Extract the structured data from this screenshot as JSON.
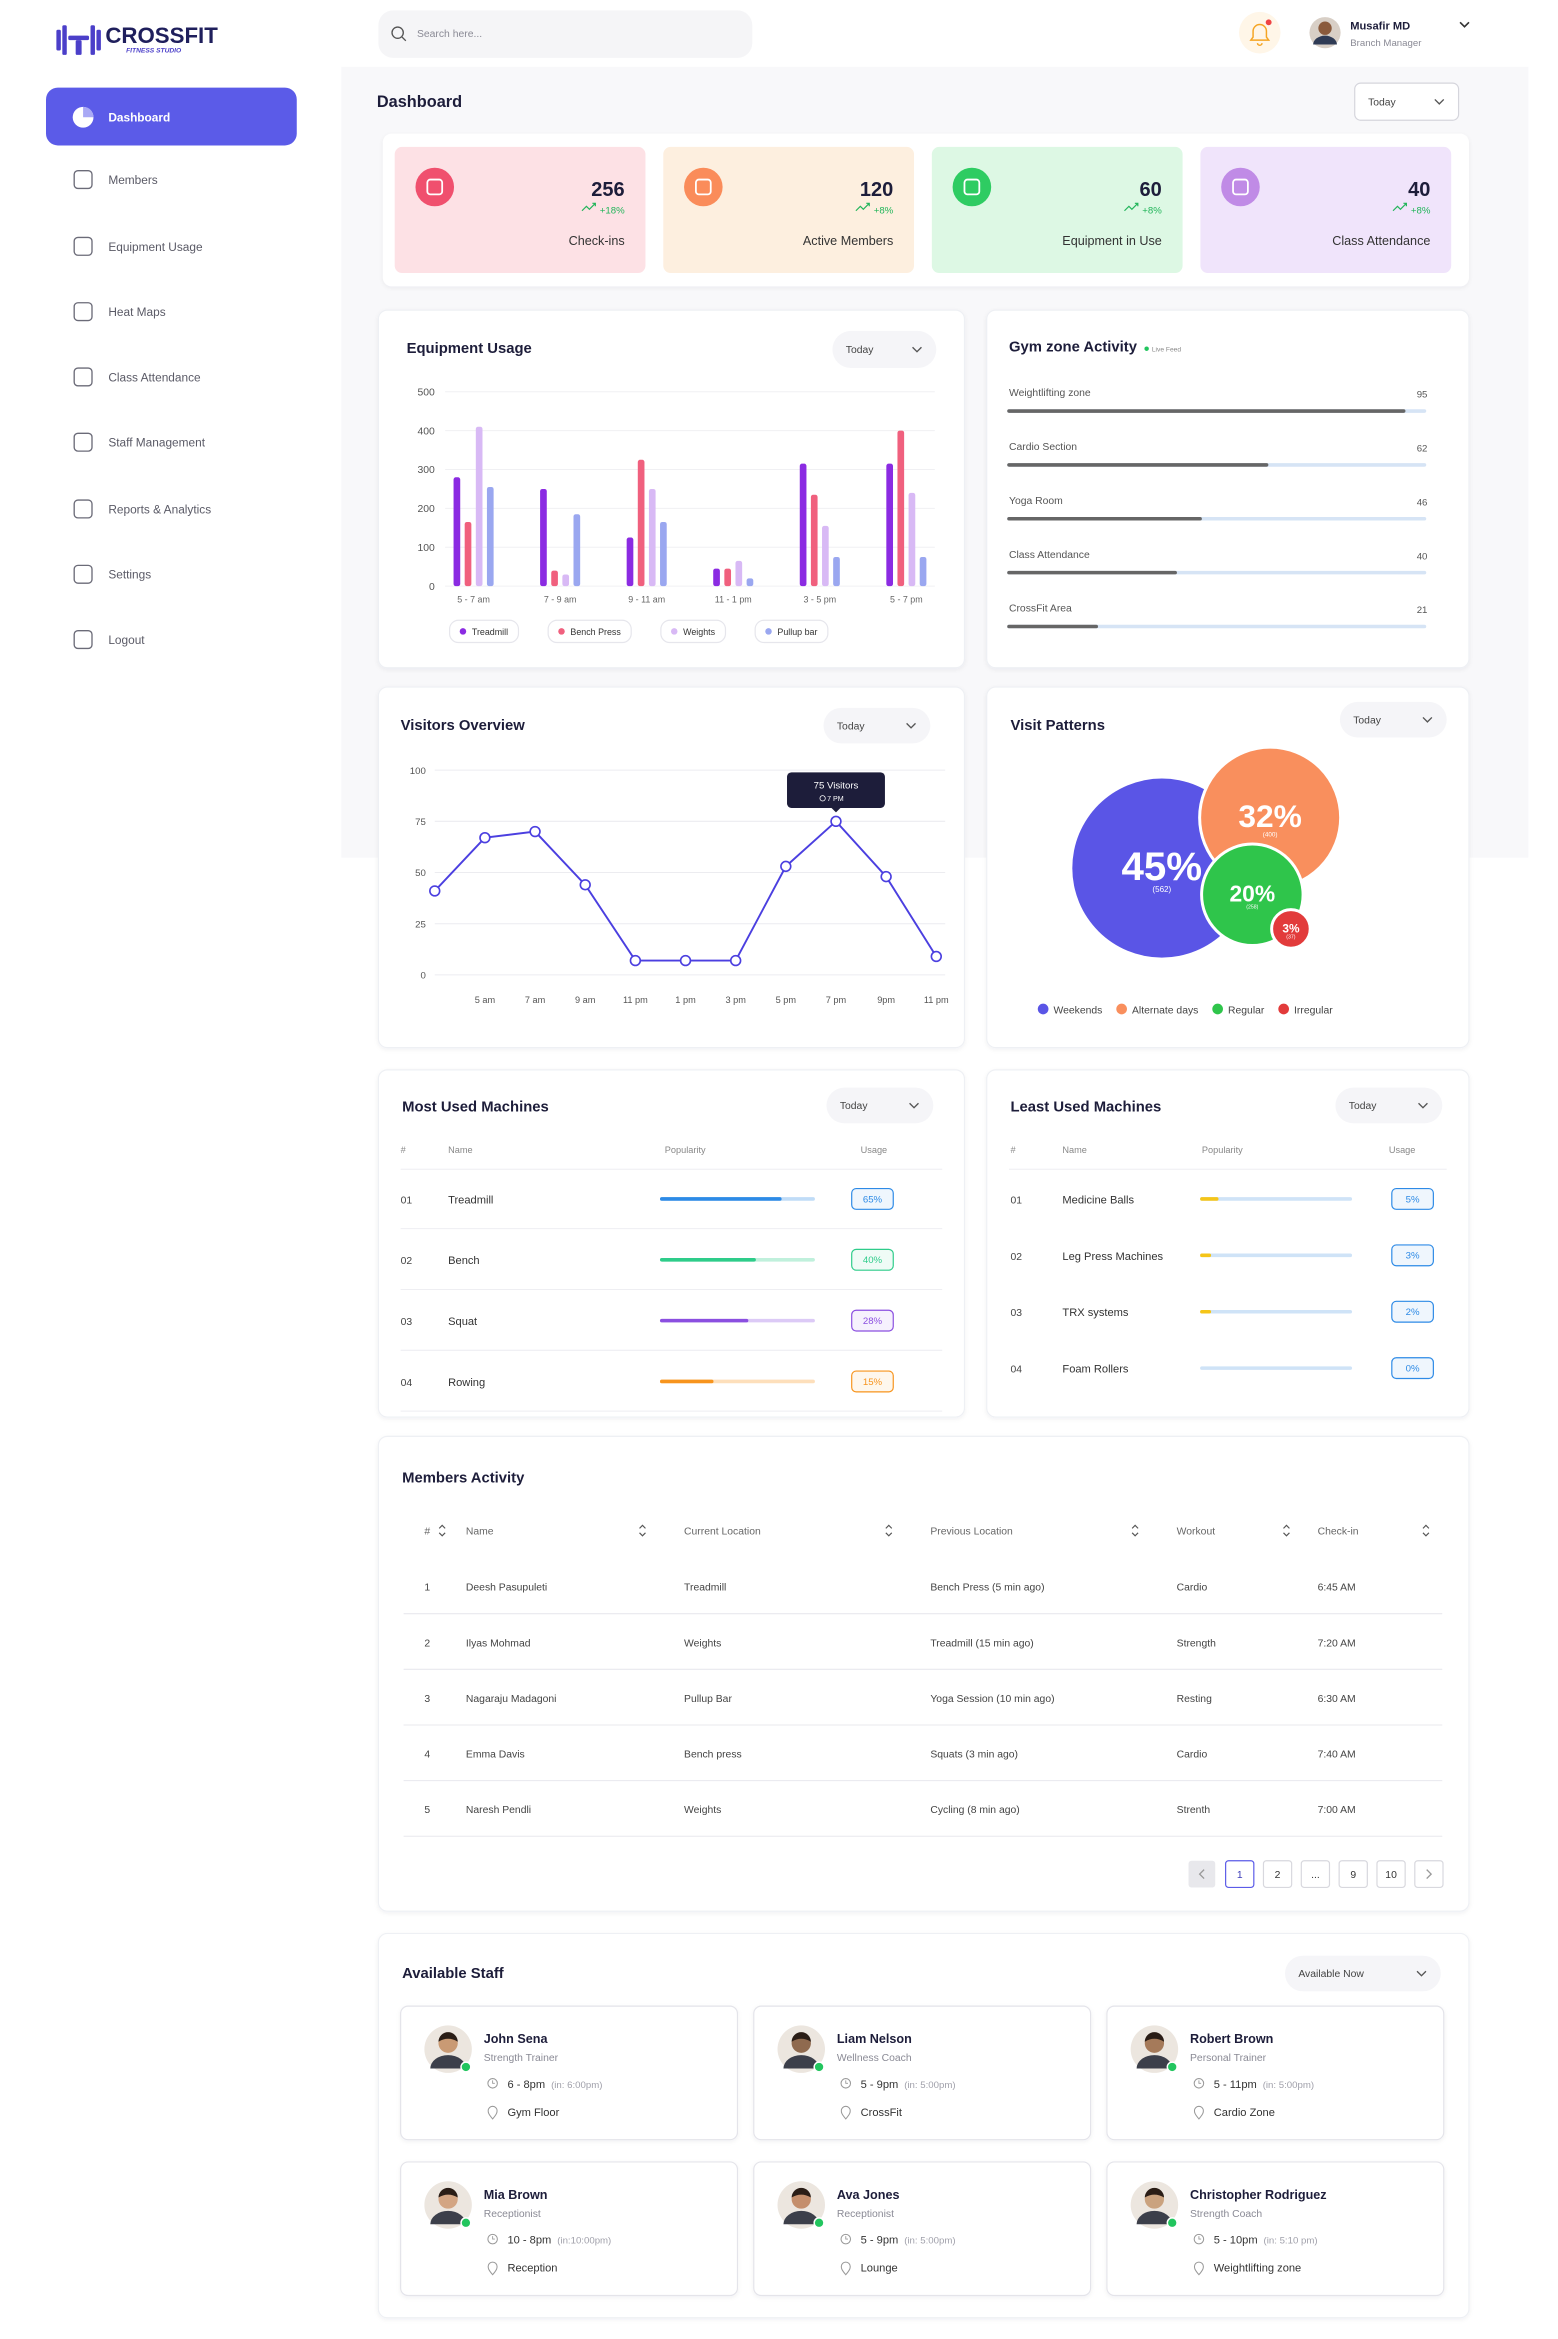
{
  "sidebar": {
    "brand": "CROSSFIT",
    "brand_sub": "FITNESS STUDIO",
    "nav": [
      "Dashboard",
      "Members",
      "Equipment Usage",
      "Heat Maps",
      "Class Attendance",
      "Staff Management",
      "Reports & Analytics",
      "Settings",
      "Logout"
    ]
  },
  "header": {
    "search_placeholder": "Search here...",
    "user_name": "Musafir MD",
    "user_role": "Branch Manager"
  },
  "page_title": "Dashboard",
  "period": "Today",
  "kpis": [
    {
      "value": 256,
      "change": "+18%",
      "label": "Check-ins",
      "color": "#f0506e",
      "bg": "#fde1e5"
    },
    {
      "value": 120,
      "change": "+8%",
      "label": "Active Members",
      "color": "#fa8c5a",
      "bg": "#fdefdf"
    },
    {
      "value": 60,
      "change": "+8%",
      "label": "Equipment in Use",
      "color": "#2ecc62",
      "bg": "#ddf8e4"
    },
    {
      "value": 40,
      "change": "+8%",
      "label": "Class Attendance",
      "color": "#c08be6",
      "bg": "#f0e4fb"
    }
  ],
  "equipment_usage": {
    "type": "bar",
    "title": "Equipment Usage",
    "filter": "Today",
    "categories": [
      "5 - 7 am",
      "7 - 9 am",
      "9 - 11 am",
      "11 - 1 pm",
      "3 - 5 pm",
      "5 - 7 pm"
    ],
    "series": [
      {
        "name": "Treadmill",
        "color": "#8b2be2",
        "values": [
          280,
          250,
          125,
          45,
          315,
          315
        ]
      },
      {
        "name": "Bench Press",
        "color": "#f0607e",
        "values": [
          165,
          40,
          325,
          45,
          235,
          400
        ]
      },
      {
        "name": "Weights",
        "color": "#d8b9f5",
        "values": [
          410,
          30,
          250,
          65,
          155,
          240
        ]
      },
      {
        "name": "Pullup bar",
        "color": "#9aa7f0",
        "values": [
          255,
          185,
          165,
          20,
          75,
          75
        ]
      }
    ],
    "ylim": [
      0,
      500
    ],
    "yticks": [
      0,
      100,
      200,
      300,
      400,
      500
    ],
    "grid": true
  },
  "gym_zone": {
    "title": "Gym zone Activity",
    "tag": "Live Feed",
    "xlim": [
      0,
      100
    ],
    "zones": [
      {
        "name": "Weightlifting zone",
        "value": 95
      },
      {
        "name": "Cardio Section",
        "value": 62
      },
      {
        "name": "Yoga Room",
        "value": 46
      },
      {
        "name": "Class Attendance",
        "value": 40
      },
      {
        "name": "CrossFit Area",
        "value": 21
      }
    ]
  },
  "visitors": {
    "type": "line",
    "title": "Visitors Overview",
    "filter": "Today",
    "categories": [
      null,
      "5 am",
      "7 am",
      "9 am",
      "11 pm",
      "1 pm",
      "3 pm",
      "5 pm",
      "7 pm",
      "9pm",
      "11 pm"
    ],
    "values": [
      41,
      67,
      70,
      44,
      7,
      7,
      7,
      53,
      75,
      48,
      9
    ],
    "color": "#4b3fe0",
    "ylim": [
      0,
      100
    ],
    "yticks": [
      0,
      25,
      50,
      75,
      100
    ],
    "grid": true,
    "tooltip": {
      "title": "75 Visitors",
      "subtitle": "7 PM"
    }
  },
  "visit_patterns": {
    "type": "bubble",
    "title": "Visit Patterns",
    "filter": "Today",
    "categories": [
      "Weekends",
      "Alternate days",
      "Regular",
      "Irregular"
    ],
    "values": [
      45,
      32,
      20,
      3
    ],
    "value_labels": [
      "45%",
      "32%",
      "20%",
      "3%"
    ],
    "counts": [
      562,
      400,
      258,
      37
    ],
    "count_labels": [
      "(562)",
      "(400)",
      "(258)",
      "(37)"
    ],
    "colors": [
      "#5a55e6",
      "#f98f5d",
      "#2fc54b",
      "#e23b3b"
    ]
  },
  "most_used": {
    "title": "Most Used Machines",
    "filter": "Today",
    "columns": [
      "#",
      "Name",
      "Popularity",
      "Usage"
    ],
    "rows": [
      {
        "rank": "01",
        "name": "Treadmill",
        "popularity": 78,
        "usage": 65,
        "usage_label": "65%",
        "color": "#2d8ae6"
      },
      {
        "rank": "02",
        "name": "Bench",
        "popularity": 61,
        "usage": 40,
        "usage_label": "40%",
        "color": "#2ecc8a"
      },
      {
        "rank": "03",
        "name": "Squat",
        "popularity": 56,
        "usage": 28,
        "usage_label": "28%",
        "color": "#8b4fe0"
      },
      {
        "rank": "04",
        "name": "Rowing",
        "popularity": 33,
        "usage": 15,
        "usage_label": "15%",
        "color": "#f7941d"
      }
    ]
  },
  "least_used": {
    "title": "Least Used Machines",
    "filter": "Today",
    "columns": [
      "#",
      "Name",
      "Popularity",
      "Usage"
    ],
    "rows": [
      {
        "rank": "01",
        "name": "Medicine Balls",
        "popularity": 10,
        "usage": 5,
        "usage_label": "5%",
        "color": "#2d8ae6"
      },
      {
        "rank": "02",
        "name": "Leg Press Machines",
        "popularity": 5,
        "usage": 3,
        "usage_label": "3%",
        "color": "#2d8ae6"
      },
      {
        "rank": "03",
        "name": "TRX systems",
        "popularity": 5,
        "usage": 2,
        "usage_label": "2%",
        "color": "#2d8ae6"
      },
      {
        "rank": "04",
        "name": "Foam Rollers",
        "popularity": 0,
        "usage": 0,
        "usage_label": "0%",
        "color": "#2d8ae6"
      }
    ]
  },
  "members_activity": {
    "title": "Members Activity",
    "columns": [
      "#",
      "Name",
      "Current Location",
      "Previous Location",
      "Workout",
      "Check-in"
    ],
    "rows": [
      [
        1,
        "Deesh Pasupuleti",
        "Treadmill",
        "Bench Press (5 min ago)",
        "Cardio",
        "6:45 AM"
      ],
      [
        2,
        "Ilyas Mohmad",
        "Weights",
        "Treadmill (15 min ago)",
        "Strength",
        "7:20 AM"
      ],
      [
        3,
        "Nagaraju Madagoni",
        "Pullup Bar",
        "Yoga Session (10 min ago)",
        "Resting",
        "6:30 AM"
      ],
      [
        4,
        "Emma Davis",
        "Bench press",
        "Squats (3 min ago)",
        "Cardio",
        "7:40 AM"
      ],
      [
        5,
        "Naresh Pendli",
        "Weights",
        "Cycling (8 min ago)",
        "Strenth",
        "7:00 AM"
      ]
    ],
    "pagination": [
      "1",
      "2",
      "...",
      "9",
      "10"
    ]
  },
  "available_staff": {
    "title": "Available Staff",
    "filter": "Available Now",
    "staff": [
      {
        "name": "John Sena",
        "role": "Strength Trainer",
        "time": "6 - 8pm",
        "note": "(in: 6:00pm)",
        "location": "Gym Floor"
      },
      {
        "name": "Liam Nelson",
        "role": "Wellness Coach",
        "time": "5 - 9pm",
        "note": "(in: 5:00pm)",
        "location": "CrossFit"
      },
      {
        "name": "Robert Brown",
        "role": "Personal Trainer",
        "time": "5 - 11pm",
        "note": "(in: 5:00pm)",
        "location": "Cardio Zone"
      },
      {
        "name": "Mia Brown",
        "role": "Receptionist",
        "time": "10 - 8pm",
        "note": "(in:10:00pm)",
        "location": "Reception"
      },
      {
        "name": "Ava Jones",
        "role": "Receptionist",
        "time": "5 - 9pm",
        "note": "(in: 5:00pm)",
        "location": "Lounge"
      },
      {
        "name": "Christopher Rodriguez",
        "role": "Strength Coach",
        "time": "5 - 10pm",
        "note": "(in: 5:10 pm)",
        "location": "Weightlifting zone"
      }
    ]
  }
}
